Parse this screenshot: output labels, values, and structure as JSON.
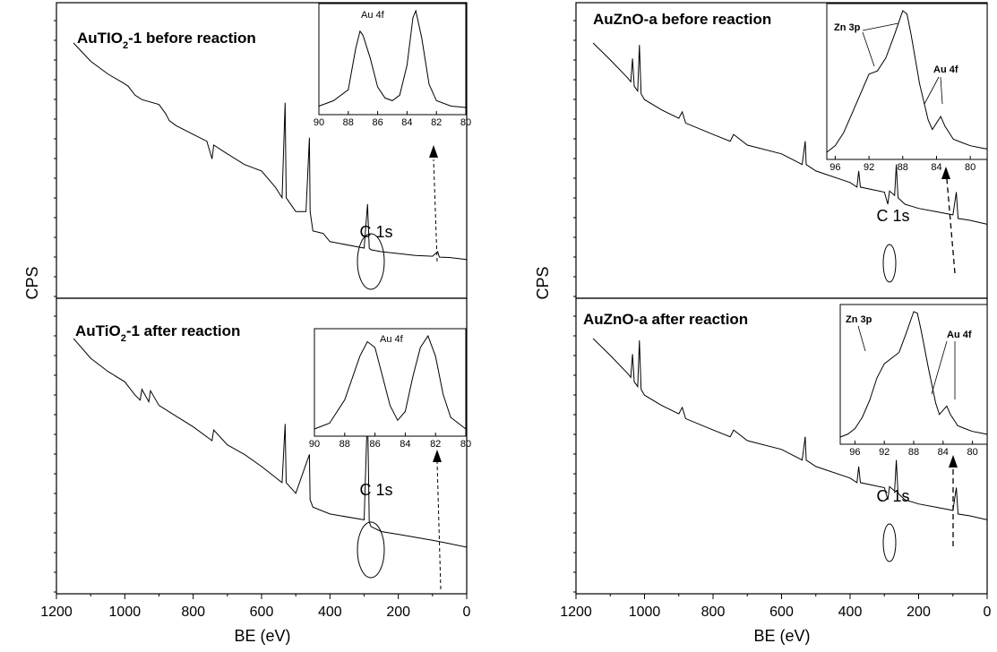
{
  "chart_data": [
    {
      "type": "line",
      "panel": "left-top",
      "title": "AuTIO2-1 before reaction",
      "title_parts": [
        "AuTIO",
        "2",
        "-1 before reaction"
      ],
      "ylabel": "CPS",
      "xlabel": "BE (eV)",
      "x_reversed": true,
      "xlim": [
        1200,
        0
      ],
      "x": [
        1150,
        1100,
        1050,
        1000,
        990,
        970,
        950,
        900,
        880,
        870,
        850,
        800,
        760,
        745,
        740,
        700,
        650,
        600,
        560,
        540,
        531,
        528,
        500,
        470,
        460,
        458,
        450,
        420,
        400,
        300,
        290,
        285,
        280,
        250,
        200,
        150,
        100,
        85,
        80,
        50,
        20,
        0
      ],
      "y": [
        100,
        68,
        52,
        42,
        40,
        33,
        30,
        27,
        22,
        19,
        17,
        14,
        12,
        8,
        11,
        9,
        7,
        6,
        4,
        3,
        28,
        3,
        2,
        2,
        13,
        2,
        1,
        0.9,
        0.6,
        0.4,
        2.5,
        0.4,
        0.35,
        0.3,
        0.25,
        0.2,
        0.18,
        0.3,
        0.16,
        0.15,
        0.12,
        0.1
      ],
      "annotation": "C 1s",
      "inset": {
        "label": "Au 4f",
        "x_ticks": [
          "90",
          "88",
          "86",
          "84",
          "82",
          "80"
        ],
        "xlim": [
          90,
          80
        ],
        "x": [
          90,
          89,
          88,
          87.5,
          87.2,
          87,
          86.5,
          86,
          85.5,
          85,
          84.5,
          84,
          83.6,
          83.4,
          83,
          82.5,
          82,
          81,
          80
        ],
        "y": [
          10,
          14,
          22,
          52,
          65,
          62,
          45,
          24,
          16,
          14,
          18,
          40,
          75,
          80,
          60,
          26,
          14,
          10,
          9
        ]
      }
    },
    {
      "type": "line",
      "panel": "left-bottom",
      "title": "AuTiO2-1 after reaction",
      "title_parts": [
        "AuTiO",
        "2",
        "-1 after reaction"
      ],
      "ylabel": "CPS",
      "xlabel": "BE (eV)",
      "x_reversed": true,
      "xlim": [
        1200,
        0
      ],
      "x_ticks": [
        "1200",
        "1000",
        "800",
        "600",
        "400",
        "200",
        "0"
      ],
      "x": [
        1150,
        1100,
        1050,
        1000,
        970,
        955,
        950,
        930,
        925,
        900,
        850,
        800,
        745,
        740,
        700,
        650,
        600,
        540,
        531,
        528,
        500,
        460,
        458,
        450,
        400,
        300,
        290,
        285,
        280,
        250,
        200,
        100,
        50,
        0
      ],
      "y": [
        100,
        66,
        50,
        40,
        30,
        27,
        34,
        26,
        33,
        24,
        19,
        15,
        11,
        14,
        10,
        8,
        6,
        4,
        16,
        4,
        3,
        8,
        2.5,
        2,
        1.6,
        1.3,
        22,
        1.2,
        1,
        0.8,
        0.7,
        0.5,
        0.4,
        0.3
      ],
      "annotation": "C 1s",
      "inset": {
        "label": "Au 4f",
        "x_ticks": [
          "90",
          "88",
          "86",
          "84",
          "82",
          "80"
        ],
        "xlim": [
          90,
          80
        ],
        "x": [
          90,
          89,
          88,
          87,
          86.5,
          86,
          85.5,
          85,
          84.5,
          84,
          83.5,
          83,
          82.5,
          82,
          81.5,
          81,
          80
        ],
        "y": [
          30,
          32,
          40,
          55,
          60,
          58,
          48,
          38,
          33,
          36,
          48,
          58,
          62,
          55,
          42,
          34,
          30
        ]
      }
    },
    {
      "type": "line",
      "panel": "right-top",
      "title": "AuZnO-a before reaction",
      "ylabel": "CPS",
      "xlabel": "BE (eV)",
      "x_reversed": true,
      "xlim": [
        1200,
        0
      ],
      "x": [
        1150,
        1100,
        1050,
        1040,
        1035,
        1030,
        1020,
        1015,
        1010,
        1000,
        950,
        900,
        890,
        880,
        800,
        750,
        740,
        700,
        600,
        540,
        531,
        528,
        500,
        400,
        380,
        375,
        370,
        300,
        290,
        285,
        270,
        265,
        260,
        240,
        200,
        150,
        100,
        90,
        85,
        50,
        0
      ],
      "y": [
        100,
        70,
        48,
        44,
        72,
        40,
        36,
        96,
        34,
        30,
        24,
        20,
        23,
        18,
        14,
        12,
        14,
        11,
        9,
        7,
        12,
        7,
        6,
        4.5,
        4,
        6,
        4,
        3.5,
        2.5,
        3.6,
        3.2,
        7,
        3,
        2.5,
        2.2,
        2,
        1.8,
        3.5,
        1.6,
        1.5,
        1.3
      ],
      "annotation": "C 1s",
      "inset": {
        "labels": [
          "Zn 3p",
          "Au 4f"
        ],
        "x_ticks": [
          "96",
          "92",
          "88",
          "84",
          "80"
        ],
        "xlim": [
          97,
          78
        ],
        "x": [
          97,
          96,
          95,
          94,
          93,
          92,
          91,
          90,
          89,
          88,
          87.5,
          87,
          86,
          85,
          84.5,
          84,
          83.5,
          83,
          82,
          81,
          80,
          79,
          78
        ],
        "y": [
          8,
          12,
          20,
          32,
          44,
          56,
          58,
          66,
          80,
          95,
          93,
          80,
          50,
          28,
          22,
          26,
          30,
          24,
          16,
          14,
          12,
          11,
          10
        ]
      }
    },
    {
      "type": "line",
      "panel": "right-bottom",
      "title": "AuZnO-a after reaction",
      "ylabel": "CPS",
      "xlabel": "BE (eV)",
      "x_reversed": true,
      "xlim": [
        1200,
        0
      ],
      "x_ticks": [
        "1200",
        "1000",
        "800",
        "600",
        "400",
        "200",
        "0"
      ],
      "x": [
        1150,
        1100,
        1050,
        1040,
        1035,
        1030,
        1020,
        1015,
        1010,
        1000,
        950,
        900,
        890,
        880,
        800,
        750,
        740,
        700,
        600,
        540,
        531,
        528,
        500,
        400,
        380,
        375,
        370,
        300,
        290,
        285,
        270,
        265,
        260,
        240,
        200,
        150,
        100,
        90,
        85,
        50,
        0
      ],
      "y": [
        100,
        70,
        48,
        44,
        72,
        40,
        36,
        96,
        34,
        30,
        24,
        20,
        23,
        18,
        14,
        12,
        14,
        11,
        9,
        7,
        12,
        7,
        6,
        4.5,
        4,
        6,
        4,
        3.5,
        2.5,
        3.6,
        3.2,
        7,
        3,
        2.5,
        2.2,
        2,
        1.8,
        3.5,
        1.6,
        1.5,
        1.3
      ],
      "annotation": "C 1s",
      "inset": {
        "labels": [
          "Zn 3p",
          "Au 4f"
        ],
        "x_ticks": [
          "96",
          "92",
          "88",
          "84",
          "80"
        ],
        "xlim": [
          98,
          78
        ],
        "x": [
          98,
          97,
          96,
          95,
          94,
          93,
          92,
          91,
          90,
          89,
          88,
          87.5,
          87,
          86,
          85,
          84.5,
          84,
          83.5,
          83,
          82,
          81,
          80,
          79,
          78
        ],
        "y": [
          6,
          8,
          12,
          20,
          32,
          48,
          58,
          62,
          66,
          80,
          95,
          94,
          82,
          55,
          30,
          22,
          25,
          28,
          22,
          14,
          12,
          10,
          9,
          8
        ]
      }
    }
  ]
}
